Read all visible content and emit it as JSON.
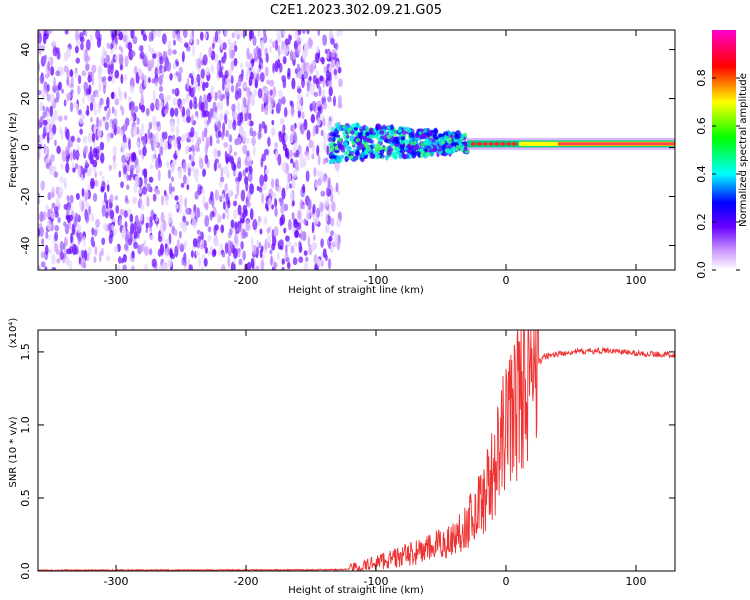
{
  "title": "C2E1.2023.302.09.21.G05",
  "chart_data": [
    {
      "type": "heatmap",
      "title": "C2E1.2023.302.09.21.G05",
      "xlabel": "Height of straight line (km)",
      "ylabel": "Frequency (Hz)",
      "xlim": [
        -360,
        130
      ],
      "ylim": [
        -50,
        48
      ],
      "x_ticks": [
        -300,
        -200,
        -100,
        0,
        100
      ],
      "y_ticks": [
        -40,
        -20,
        0,
        20,
        40
      ],
      "colorbar": {
        "label": "Normalized spectral amplitude",
        "range": [
          0.0,
          1.0
        ],
        "ticks": [
          0.0,
          0.2,
          0.4,
          0.6,
          0.8
        ],
        "colors": [
          "#ffffff",
          "#cc99ff",
          "#6600ff",
          "#0000ff",
          "#00ffff",
          "#00ff00",
          "#ffff00",
          "#ff0000",
          "#ff00cc"
        ]
      },
      "regions": [
        {
          "x_range": [
            -360,
            -135
          ],
          "freq_range": [
            -50,
            48
          ],
          "amplitude": 0.1,
          "pattern": "broadband noise"
        },
        {
          "x_range": [
            -135,
            -30
          ],
          "freq_center": 2,
          "freq_spread": 8,
          "amplitude": 0.4,
          "pattern": "scattered signal"
        },
        {
          "x_range": [
            -30,
            130
          ],
          "freq_center": 1.5,
          "freq_spread": 2,
          "amplitude": 0.85,
          "pattern": "coherent tone"
        }
      ]
    },
    {
      "type": "line",
      "xlabel": "Height of straight line (km)",
      "ylabel": "SNR (10 * v/v)",
      "y_multiplier": "(x10⁴)",
      "xlim": [
        -360,
        130
      ],
      "ylim": [
        0,
        1.65
      ],
      "x_ticks": [
        -300,
        -200,
        -100,
        0,
        100
      ],
      "y_ticks": [
        0.0,
        0.5,
        1.0,
        1.5
      ],
      "color": "#ee3333",
      "trend": {
        "x": [
          -360,
          -300,
          -200,
          -150,
          -125,
          -110,
          -100,
          -80,
          -60,
          -40,
          -25,
          -15,
          -5,
          0,
          10,
          20,
          30,
          50,
          80,
          100,
          130
        ],
        "y": [
          0.005,
          0.006,
          0.007,
          0.008,
          0.01,
          0.03,
          0.06,
          0.1,
          0.15,
          0.22,
          0.38,
          0.55,
          0.8,
          1.0,
          1.2,
          1.38,
          1.47,
          1.5,
          1.51,
          1.49,
          1.48
        ]
      }
    }
  ]
}
